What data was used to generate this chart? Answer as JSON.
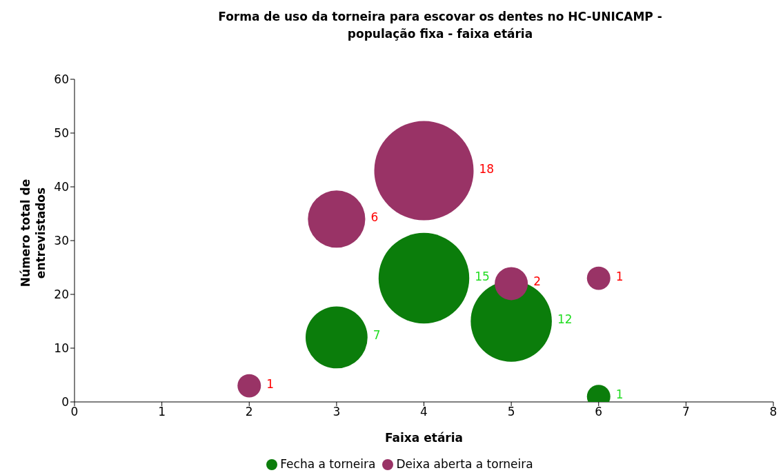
{
  "chart_data": {
    "type": "bubble",
    "title": "Forma de uso da torneira para escovar os dentes  no HC-UNICAMP - população fixa - faixa etária",
    "xlabel": "Faixa etária",
    "ylabel": "Número total de entrevistados",
    "series": [
      {
        "name": "Fecha a torneira",
        "color": "#0b7d0b",
        "x": [
          3,
          4,
          5,
          6
        ],
        "values": [
          12,
          23,
          15,
          1
        ],
        "sizes": [
          7,
          15,
          12,
          1
        ],
        "value_labels": [
          "7",
          "15",
          "12",
          "1"
        ]
      },
      {
        "name": "Deixa aberta a torneira",
        "color": "#993366",
        "x": [
          2,
          3,
          4,
          5,
          6
        ],
        "values": [
          3,
          34,
          43,
          22,
          23
        ],
        "sizes": [
          1,
          6,
          18,
          2,
          1
        ],
        "value_labels": [
          "1",
          "6",
          "18",
          "2",
          "1"
        ]
      }
    ],
    "xlim": [
      0,
      8
    ],
    "xticks": [
      0,
      1,
      2,
      3,
      4,
      5,
      6,
      7,
      8
    ],
    "ylim": [
      0,
      60
    ],
    "yticks": [
      0,
      10,
      20,
      30,
      40,
      50,
      60
    ],
    "legend": "bottom",
    "grid": false
  }
}
